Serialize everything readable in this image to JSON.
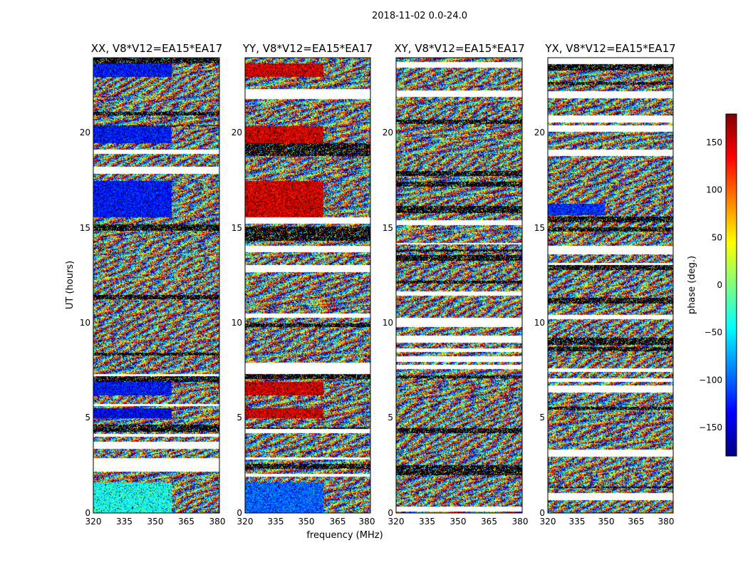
{
  "figure_title": "2018-11-02 0.0-24.0",
  "chart_data": [
    {
      "type": "heatmap",
      "title": "XX, V8*V12=EA15*EA17",
      "xlabel": "",
      "ylabel": "UT (hours)",
      "xlim": [
        320,
        381
      ],
      "ylim": [
        0,
        24
      ],
      "x_ticks": [
        "320",
        "335",
        "350",
        "365",
        "380"
      ],
      "y_ticks": [
        "0",
        "5",
        "10",
        "15",
        "20"
      ],
      "value_range": [
        -180,
        180
      ],
      "smooth_bands": [
        [
          0.0,
          1.6,
          -40
        ],
        [
          5.0,
          5.5,
          -140
        ],
        [
          6.2,
          6.9,
          -130
        ],
        [
          15.6,
          17.5,
          -130
        ],
        [
          19.5,
          20.4,
          -130
        ],
        [
          23.0,
          23.7,
          -130
        ]
      ],
      "smooth_fraction": 0.62
    },
    {
      "type": "heatmap",
      "title": "YY, V8*V12=EA15*EA17",
      "xlabel": "frequency (MHz)",
      "ylabel": "",
      "xlim": [
        320,
        381
      ],
      "ylim": [
        0,
        24
      ],
      "x_ticks": [
        "320",
        "335",
        "350",
        "365",
        "380"
      ],
      "y_ticks": [
        "0",
        "5",
        "10",
        "15",
        "20"
      ],
      "value_range": [
        -180,
        180
      ],
      "smooth_bands": [
        [
          0.0,
          1.6,
          -100
        ],
        [
          5.0,
          5.5,
          150
        ],
        [
          6.2,
          6.9,
          150
        ],
        [
          15.6,
          17.5,
          150
        ],
        [
          19.5,
          20.4,
          150
        ],
        [
          23.0,
          23.7,
          150
        ]
      ],
      "smooth_fraction": 0.62
    },
    {
      "type": "heatmap",
      "title": "XY, V8*V12=EA15*EA17",
      "xlabel": "",
      "ylabel": "",
      "xlim": [
        320,
        381
      ],
      "ylim": [
        0,
        24
      ],
      "x_ticks": [
        "320",
        "335",
        "350",
        "365",
        "380"
      ],
      "y_ticks": [
        "0",
        "5",
        "10",
        "15",
        "20"
      ],
      "value_range": [
        -180,
        180
      ],
      "smooth_bands": [],
      "smooth_fraction": 0.0
    },
    {
      "type": "heatmap",
      "title": "YX, V8*V12=EA15*EA17",
      "xlabel": "",
      "ylabel": "",
      "xlim": [
        320,
        381
      ],
      "ylim": [
        0,
        24
      ],
      "x_ticks": [
        "320",
        "335",
        "350",
        "365",
        "380"
      ],
      "y_ticks": [
        "0",
        "5",
        "10",
        "15",
        "20"
      ],
      "value_range": [
        -180,
        180
      ],
      "smooth_bands": [
        [
          15.7,
          16.3,
          -120
        ]
      ],
      "smooth_fraction": 0.45
    }
  ],
  "colorbar": {
    "label": "phase (deg.)",
    "range": [
      -180,
      180
    ],
    "ticks": [
      "150",
      "100",
      "50",
      "0",
      "−50",
      "−100",
      "−150"
    ],
    "tick_values": [
      150,
      100,
      50,
      0,
      -50,
      -100,
      -150
    ],
    "colormap": "jet"
  }
}
